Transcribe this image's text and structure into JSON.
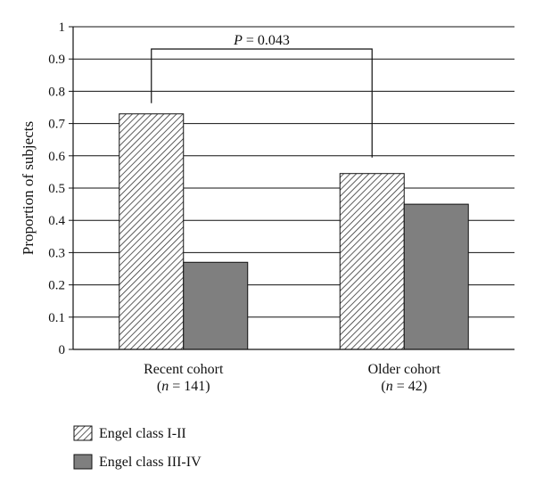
{
  "chart_data": {
    "type": "bar",
    "ylabel": "Proportion of subjects",
    "ylim": [
      0,
      1
    ],
    "y_ticks": [
      "0",
      "0.1",
      "0.2",
      "0.3",
      "0.4",
      "0.5",
      "0.6",
      "0.7",
      "0.8",
      "0.9",
      "1"
    ],
    "grid": true,
    "categories": [
      {
        "label": "Recent cohort",
        "n_label": "(n = 141)",
        "n_prefix": "(",
        "n_var": "n",
        "n_suffix": " = 141)"
      },
      {
        "label": "Older cohort",
        "n_label": "(n = 42)",
        "n_prefix": "(",
        "n_var": "n",
        "n_suffix": " = 42)"
      }
    ],
    "series": [
      {
        "name": "Engel class I-II",
        "values": [
          0.73,
          0.545
        ],
        "fill": "hatched",
        "color": "#333333"
      },
      {
        "name": "Engel class III-IV",
        "values": [
          0.27,
          0.45
        ],
        "fill": "solid",
        "color": "#7f7f7f"
      }
    ],
    "annotation": {
      "text": "P = 0.043",
      "var": "P",
      "rest": " = 0.043",
      "between": "Recent cohort vs Older cohort (Engel class I-II)"
    },
    "legend_placement": "bottom-left"
  }
}
